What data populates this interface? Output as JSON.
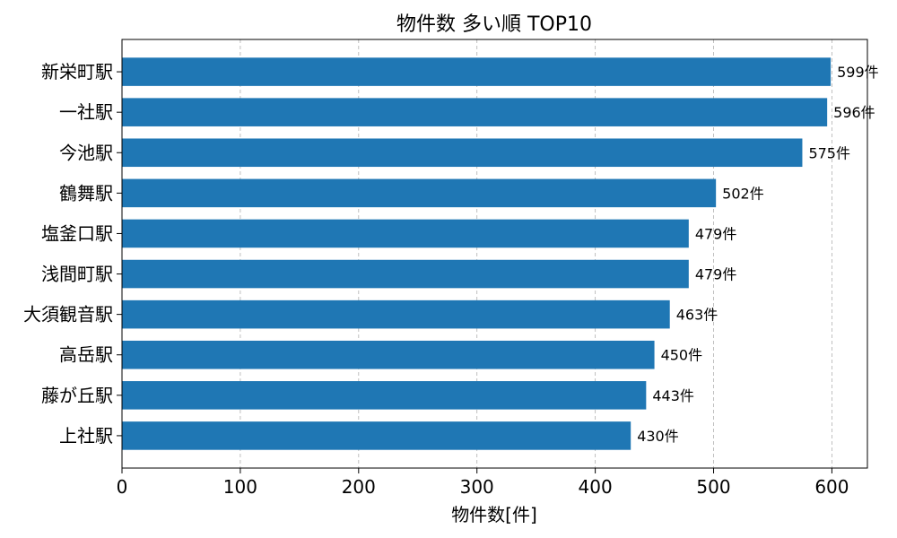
{
  "chart_data": {
    "type": "bar",
    "orientation": "horizontal",
    "title": "物件数 多い順 TOP10",
    "xlabel": "物件数[件]",
    "ylabel": "",
    "xlim": [
      0,
      630
    ],
    "xticks": [
      0,
      100,
      200,
      300,
      400,
      500,
      600
    ],
    "grid": "x-dashed",
    "bar_color": "#1f77b4",
    "value_suffix": "件",
    "categories": [
      "新栄町駅",
      "一社駅",
      "今池駅",
      "鶴舞駅",
      "塩釜口駅",
      "浅間町駅",
      "大須観音駅",
      "高岳駅",
      "藤が丘駅",
      "上社駅"
    ],
    "values": [
      599,
      596,
      575,
      502,
      479,
      479,
      463,
      450,
      443,
      430
    ]
  }
}
